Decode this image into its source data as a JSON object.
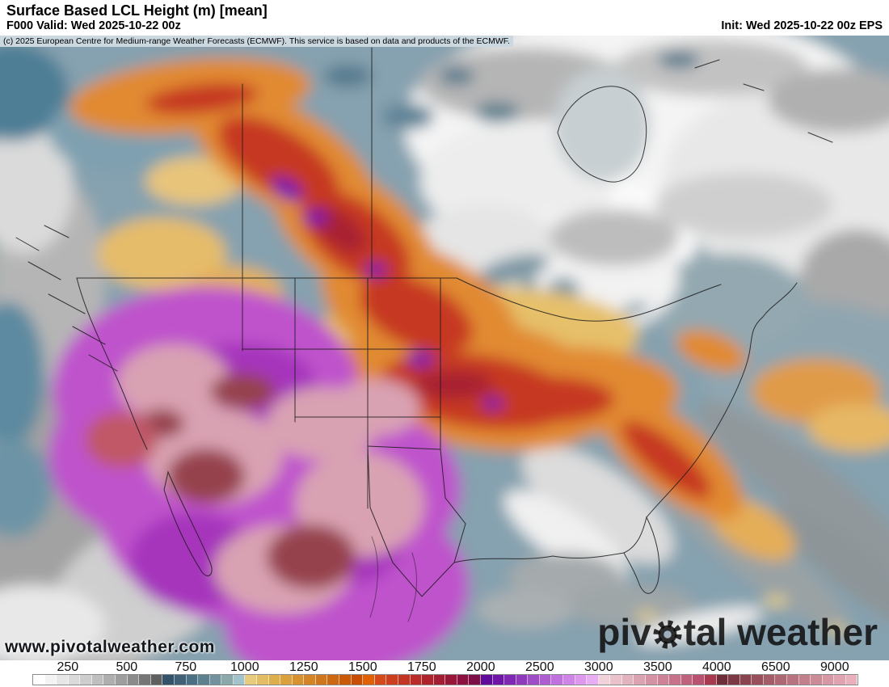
{
  "header": {
    "title": "Surface Based LCL Height (m) [mean]",
    "valid_label": "F000 Valid: Wed 2025-10-22 00z",
    "init_label": "Init: Wed 2025-10-22 00z EPS"
  },
  "attribution": "(c) 2025 European Centre for Medium-range Weather Forecasts (ECMWF). This service is based on data and products of the ECMWF.",
  "watermarks": {
    "url": "www.pivotalweather.com",
    "brand_full_text": "pivotal weather",
    "brand_left": "piv",
    "brand_right": "tal weather",
    "gear_icon": "gear-icon"
  },
  "map": {
    "region": "North America",
    "field": "Surface Based LCL Height",
    "unit": "m",
    "statistic": "mean",
    "model": "EPS"
  },
  "colorbar": {
    "unit": "m",
    "cells": 70,
    "ticks": [
      {
        "label": "250",
        "cell": 3
      },
      {
        "label": "500",
        "cell": 8
      },
      {
        "label": "750",
        "cell": 13
      },
      {
        "label": "1000",
        "cell": 18
      },
      {
        "label": "1250",
        "cell": 23
      },
      {
        "label": "1500",
        "cell": 28
      },
      {
        "label": "1750",
        "cell": 33
      },
      {
        "label": "2000",
        "cell": 38
      },
      {
        "label": "2500",
        "cell": 43
      },
      {
        "label": "3000",
        "cell": 48
      },
      {
        "label": "3500",
        "cell": 53
      },
      {
        "label": "4000",
        "cell": 58
      },
      {
        "label": "6500",
        "cell": 63
      },
      {
        "label": "9000",
        "cell": 68
      }
    ],
    "colors": [
      "#ffffff",
      "#f3f3f3",
      "#e7e7e7",
      "#dadada",
      "#cdcdcd",
      "#bfbfbf",
      "#afafaf",
      "#9e9e9e",
      "#8b8b8b",
      "#767676",
      "#606060",
      "#34536b",
      "#3f6077",
      "#4c7083",
      "#5e8190",
      "#73929e",
      "#8ba8ab",
      "#a3c3cc",
      "#e7cc7e",
      "#e2bd63",
      "#deae4d",
      "#daa03c",
      "#d69230",
      "#d38426",
      "#d0761c",
      "#cd6812",
      "#ca5a08",
      "#c74e02",
      "#e06005",
      "#d44a1a",
      "#cb3e1f",
      "#c23523",
      "#b92c27",
      "#ae242d",
      "#a31d33",
      "#981739",
      "#8d113f",
      "#7c0f46",
      "#5f0b9b",
      "#6f16a6",
      "#7f28b1",
      "#8f3abc",
      "#9f4cc7",
      "#af5ed2",
      "#bf71dd",
      "#cf84e7",
      "#dc99ee",
      "#e7aef3",
      "#f0d2d8",
      "#e9c2cb",
      "#e2b2be",
      "#dba2b1",
      "#d492a4",
      "#cd8297",
      "#c6728a",
      "#bf627d",
      "#b85270",
      "#a83a50",
      "#6e2d38",
      "#7c3844",
      "#8a4450",
      "#97505c",
      "#a35c68",
      "#ad6874",
      "#b77480",
      "#c1808c",
      "#cb8c98",
      "#d598a4",
      "#dfa4b0",
      "#e9b0bc"
    ]
  }
}
